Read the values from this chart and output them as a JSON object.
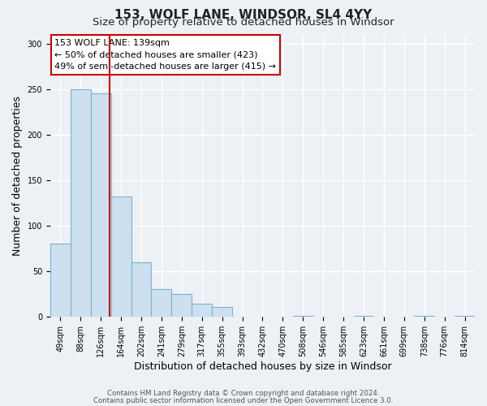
{
  "title": "153, WOLF LANE, WINDSOR, SL4 4YY",
  "subtitle": "Size of property relative to detached houses in Windsor",
  "xlabel": "Distribution of detached houses by size in Windsor",
  "ylabel": "Number of detached properties",
  "categories": [
    "49sqm",
    "88sqm",
    "126sqm",
    "164sqm",
    "202sqm",
    "241sqm",
    "279sqm",
    "317sqm",
    "355sqm",
    "393sqm",
    "432sqm",
    "470sqm",
    "508sqm",
    "546sqm",
    "585sqm",
    "623sqm",
    "661sqm",
    "699sqm",
    "738sqm",
    "776sqm",
    "814sqm"
  ],
  "bar_heights": [
    80,
    250,
    245,
    132,
    60,
    30,
    25,
    14,
    11,
    0,
    0,
    0,
    1,
    0,
    0,
    1,
    0,
    0,
    1,
    0,
    1
  ],
  "bar_color": "#cde0ef",
  "bar_edgecolor": "#7ab3d0",
  "bar_linewidth": 0.8,
  "vline_x": 2.42,
  "vline_color": "#cc0000",
  "vline_linewidth": 1.5,
  "annotation_text": "153 WOLF LANE: 139sqm\n← 50% of detached houses are smaller (423)\n49% of semi-detached houses are larger (415) →",
  "annotation_box_facecolor": "#ffffff",
  "annotation_box_edgecolor": "#cc0000",
  "annotation_fontsize": 8.0,
  "ylim": [
    0,
    310
  ],
  "yticks": [
    0,
    50,
    100,
    150,
    200,
    250,
    300
  ],
  "background_color": "#edf1f5",
  "plot_bg_color": "#edf1f5",
  "grid_color": "#ffffff",
  "title_fontsize": 11,
  "subtitle_fontsize": 9.5,
  "xlabel_fontsize": 9,
  "ylabel_fontsize": 9,
  "tick_fontsize": 7,
  "footer_line1": "Contains HM Land Registry data © Crown copyright and database right 2024.",
  "footer_line2": "Contains public sector information licensed under the Open Government Licence 3.0."
}
